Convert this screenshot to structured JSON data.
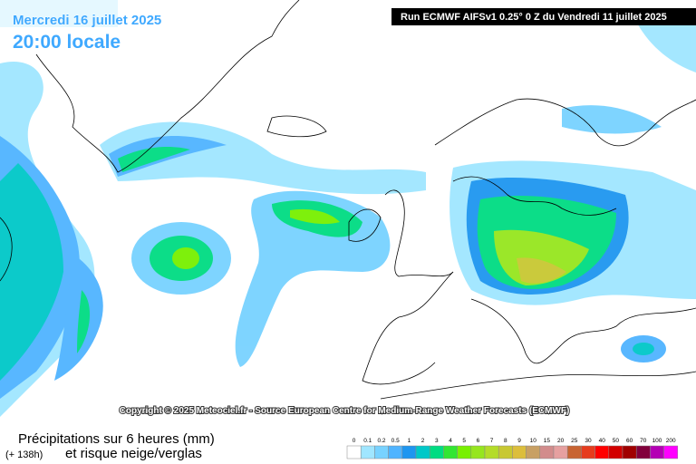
{
  "header": {
    "date": "Mercredi 16 juillet 2025",
    "time": "20:00 locale",
    "run": "Run ECMWF AIFSv1 0.25° 0 Z du Vendredi 11 juillet 2025"
  },
  "copyright": "Copyright © 2025 Meteociel.fr - Source European Centre for Medium-Range Weather Forecasts (ECMWF)",
  "footer": {
    "title": "Précipitations sur 6 heures (mm)",
    "lead": "(+ 138h)",
    "subtitle": "et risque neige/verglas"
  },
  "legend": [
    {
      "label": "0",
      "color": "#ffffff"
    },
    {
      "label": "0.1",
      "color": "#a0e6ff"
    },
    {
      "label": "0.2",
      "color": "#78d2ff"
    },
    {
      "label": "0.5",
      "color": "#50b4ff"
    },
    {
      "label": "1",
      "color": "#1e96f0"
    },
    {
      "label": "2",
      "color": "#00c8c8"
    },
    {
      "label": "3",
      "color": "#00dc82"
    },
    {
      "label": "4",
      "color": "#32e632"
    },
    {
      "label": "5",
      "color": "#78f000"
    },
    {
      "label": "6",
      "color": "#96e61e"
    },
    {
      "label": "7",
      "color": "#b4dc28"
    },
    {
      "label": "8",
      "color": "#c8c832"
    },
    {
      "label": "9",
      "color": "#dcbe3c"
    },
    {
      "label": "10",
      "color": "#c8a064"
    },
    {
      "label": "15",
      "color": "#d28c8c"
    },
    {
      "label": "20",
      "color": "#e6a0a0"
    },
    {
      "label": "25",
      "color": "#c86432"
    },
    {
      "label": "30",
      "color": "#e63c1e"
    },
    {
      "label": "40",
      "color": "#ff0000"
    },
    {
      "label": "50",
      "color": "#d20000"
    },
    {
      "label": "60",
      "color": "#a00000"
    },
    {
      "label": "70",
      "color": "#82003c"
    },
    {
      "label": "100",
      "color": "#b400b4"
    },
    {
      "label": "200",
      "color": "#ff00ff"
    }
  ]
}
